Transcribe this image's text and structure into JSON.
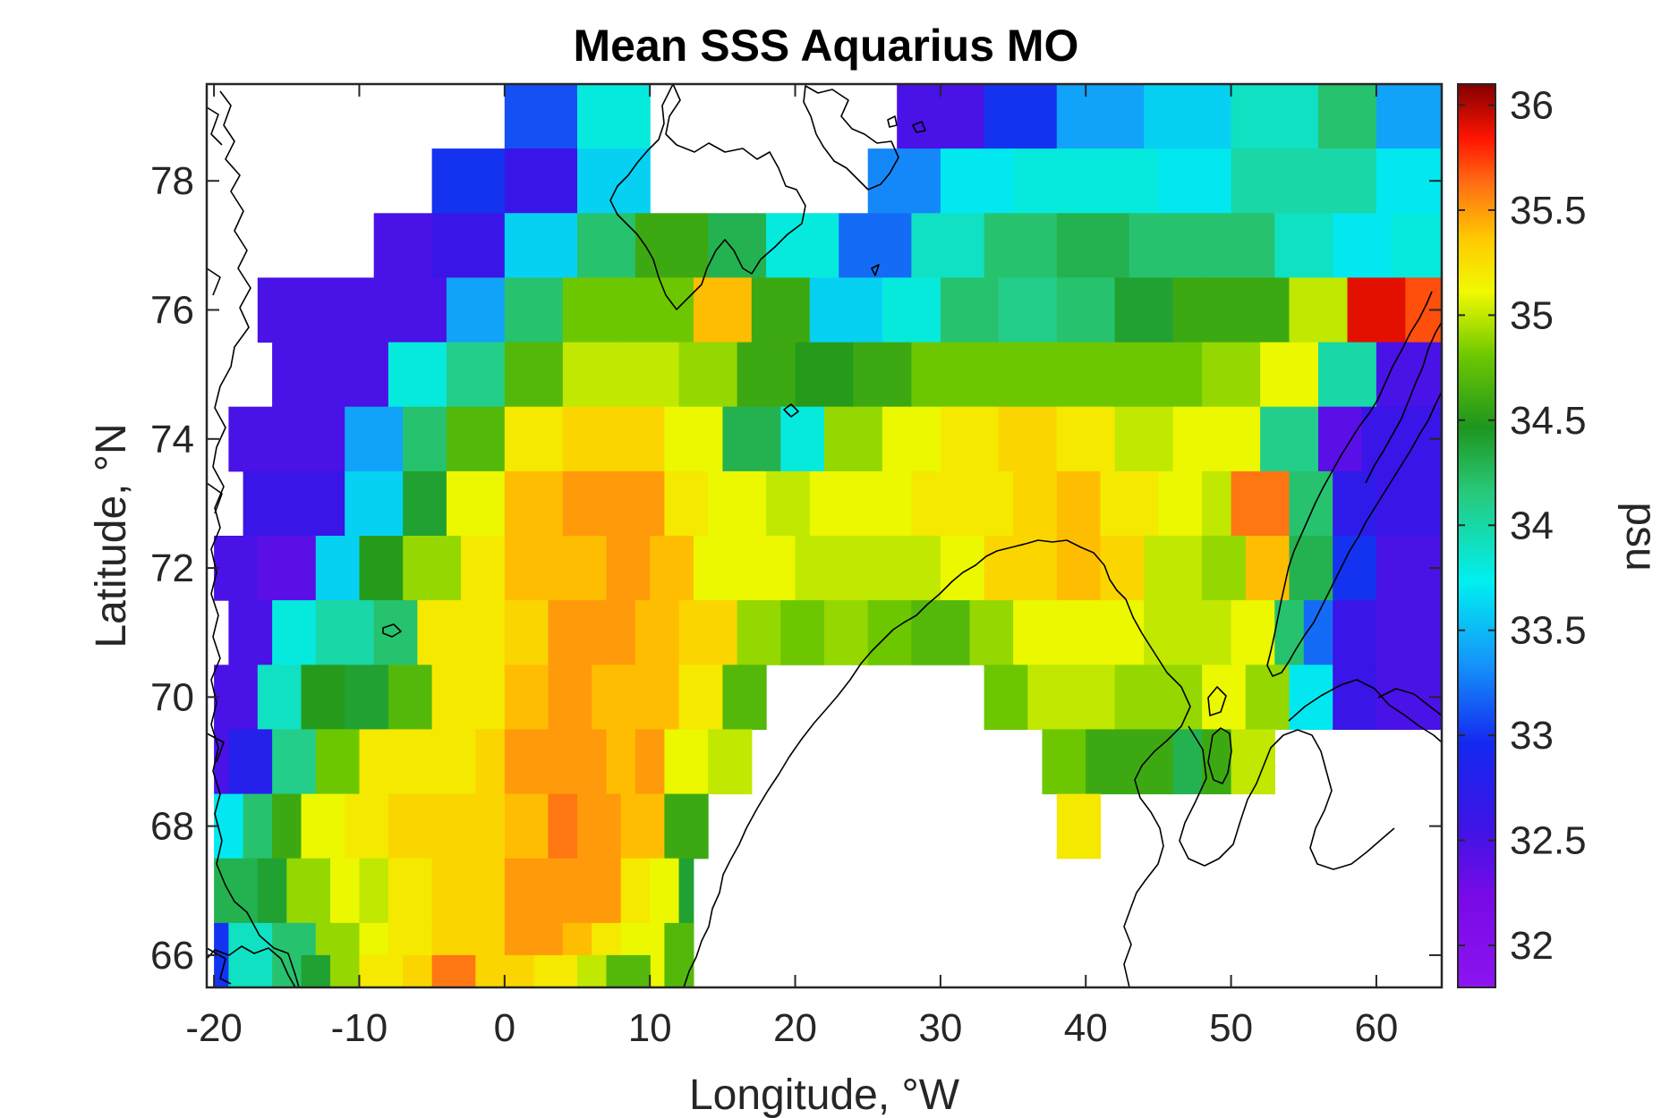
{
  "chart_data": {
    "type": "heatmap",
    "title": "Mean SSS Aquarius MO",
    "xlabel": "Longitude, °W",
    "ylabel": "Latitude, °N",
    "xlim": [
      -20.5,
      64.5
    ],
    "ylim": [
      65.5,
      79.5
    ],
    "xticks": [
      -20,
      -10,
      0,
      10,
      20,
      30,
      40,
      50,
      60
    ],
    "xtick_labels": [
      "-20",
      "-10",
      "0",
      "10",
      "20",
      "30",
      "40",
      "50",
      "60"
    ],
    "yticks": [
      66,
      68,
      70,
      72,
      74,
      76,
      78
    ],
    "ytick_labels": [
      "66",
      "68",
      "70",
      "72",
      "74",
      "76",
      "78"
    ],
    "grid": false,
    "colormap": "jet-like (purple-blue-cyan-green-yellow-red-darkred)",
    "colorbar": {
      "label": "psu",
      "range": [
        31.8,
        36.1
      ],
      "ticks": [
        32,
        32.5,
        33,
        33.5,
        34,
        34.5,
        35,
        35.5,
        36
      ],
      "tick_labels": [
        "32",
        "32.5",
        "33",
        "33.5",
        "34",
        "34.5",
        "35",
        "35.5",
        "36"
      ]
    },
    "latitude_rows": [
      79,
      78,
      77,
      76,
      75,
      74,
      73,
      72,
      71,
      70,
      69,
      68,
      67,
      66
    ],
    "cells": [
      {
        "lat": 79,
        "lon": [
          [
            0,
            5,
            33.1
          ],
          [
            5,
            10,
            33.8
          ],
          [
            27,
            33,
            32.5
          ],
          [
            33,
            38,
            33.0
          ],
          [
            38,
            44,
            33.4
          ],
          [
            44,
            50,
            33.6
          ],
          [
            50,
            56,
            33.9
          ],
          [
            56,
            60,
            34.2
          ],
          [
            60,
            64.5,
            33.4
          ]
        ]
      },
      {
        "lat": 78,
        "lon": [
          [
            -5,
            0,
            33.0
          ],
          [
            0,
            5,
            32.6
          ],
          [
            5,
            10,
            33.6
          ],
          [
            25,
            30,
            33.3
          ],
          [
            30,
            35,
            33.7
          ],
          [
            35,
            40,
            33.8
          ],
          [
            40,
            45,
            33.8
          ],
          [
            45,
            50,
            33.7
          ],
          [
            50,
            55,
            34.0
          ],
          [
            55,
            60,
            34.0
          ],
          [
            60,
            64.5,
            33.7
          ]
        ]
      },
      {
        "lat": 77,
        "lon": [
          [
            -9,
            -5,
            32.5
          ],
          [
            -5,
            0,
            32.6
          ],
          [
            0,
            5,
            33.6
          ],
          [
            5,
            9,
            34.2
          ],
          [
            9,
            14,
            34.6
          ],
          [
            14,
            18,
            34.3
          ],
          [
            18,
            23,
            33.8
          ],
          [
            23,
            28,
            33.2
          ],
          [
            28,
            33,
            33.9
          ],
          [
            33,
            38,
            34.2
          ],
          [
            38,
            43,
            34.3
          ],
          [
            43,
            48,
            34.2
          ],
          [
            48,
            53,
            34.2
          ],
          [
            53,
            57,
            33.9
          ],
          [
            57,
            61,
            33.7
          ],
          [
            61,
            64.5,
            33.8
          ]
        ]
      },
      {
        "lat": 76,
        "lon": [
          [
            -17,
            -4,
            32.5
          ],
          [
            -4,
            0,
            33.4
          ],
          [
            0,
            4,
            34.2
          ],
          [
            4,
            13,
            34.8
          ],
          [
            13,
            17,
            35.4
          ],
          [
            17,
            21,
            34.6
          ],
          [
            21,
            26,
            33.6
          ],
          [
            26,
            30,
            33.8
          ],
          [
            30,
            34,
            34.2
          ],
          [
            34,
            38,
            34.1
          ],
          [
            38,
            42,
            34.2
          ],
          [
            42,
            46,
            34.4
          ],
          [
            46,
            54,
            34.6
          ],
          [
            54,
            58,
            35.0
          ],
          [
            58,
            62,
            35.9
          ],
          [
            62,
            64.5,
            35.7
          ]
        ]
      },
      {
        "lat": 75,
        "lon": [
          [
            -16,
            -8,
            32.5
          ],
          [
            -8,
            -4,
            33.8
          ],
          [
            -4,
            0,
            34.1
          ],
          [
            0,
            4,
            34.7
          ],
          [
            4,
            8,
            35.0
          ],
          [
            8,
            12,
            35.0
          ],
          [
            12,
            16,
            34.9
          ],
          [
            16,
            20,
            34.6
          ],
          [
            20,
            24,
            34.5
          ],
          [
            24,
            28,
            34.6
          ],
          [
            28,
            48,
            34.8
          ],
          [
            48,
            52,
            34.9
          ],
          [
            52,
            56,
            35.1
          ],
          [
            56,
            60,
            34.0
          ],
          [
            60,
            64.5,
            32.5
          ]
        ]
      },
      {
        "lat": 74,
        "lon": [
          [
            -19,
            -11,
            32.5
          ],
          [
            -11,
            -7,
            33.4
          ],
          [
            -7,
            -4,
            34.2
          ],
          [
            -4,
            0,
            34.7
          ],
          [
            0,
            4,
            35.2
          ],
          [
            4,
            11,
            35.3
          ],
          [
            11,
            15,
            35.1
          ],
          [
            15,
            19,
            34.3
          ],
          [
            19,
            22,
            33.8
          ],
          [
            22,
            26,
            34.9
          ],
          [
            26,
            30,
            35.1
          ],
          [
            30,
            34,
            35.2
          ],
          [
            34,
            38,
            35.3
          ],
          [
            38,
            42,
            35.2
          ],
          [
            42,
            46,
            35.0
          ],
          [
            46,
            52,
            35.1
          ],
          [
            52,
            56,
            34.1
          ],
          [
            56,
            59,
            32.4
          ],
          [
            59,
            64.5,
            32.6
          ]
        ]
      },
      {
        "lat": 73,
        "lon": [
          [
            -18,
            -11,
            32.6
          ],
          [
            -11,
            -7,
            33.6
          ],
          [
            -7,
            -4,
            34.4
          ],
          [
            -4,
            0,
            35.1
          ],
          [
            0,
            4,
            35.4
          ],
          [
            4,
            11,
            35.5
          ],
          [
            11,
            14,
            35.2
          ],
          [
            14,
            18,
            35.1
          ],
          [
            18,
            21,
            35.0
          ],
          [
            21,
            28,
            35.1
          ],
          [
            28,
            35,
            35.2
          ],
          [
            35,
            38,
            35.3
          ],
          [
            38,
            41,
            35.4
          ],
          [
            41,
            45,
            35.2
          ],
          [
            45,
            48,
            35.1
          ],
          [
            48,
            50,
            35.0
          ],
          [
            50,
            54,
            35.6
          ],
          [
            54,
            57,
            34.2
          ],
          [
            57,
            60,
            32.7
          ],
          [
            60,
            64.5,
            32.6
          ]
        ]
      },
      {
        "lat": 72,
        "lon": [
          [
            -20,
            -17,
            32.5
          ],
          [
            -17,
            -13,
            32.4
          ],
          [
            -13,
            -10,
            33.6
          ],
          [
            -10,
            -7,
            34.5
          ],
          [
            -7,
            -3,
            34.9
          ],
          [
            -3,
            0,
            35.2
          ],
          [
            0,
            7,
            35.4
          ],
          [
            7,
            10,
            35.5
          ],
          [
            10,
            13,
            35.4
          ],
          [
            13,
            20,
            35.1
          ],
          [
            20,
            30,
            35.0
          ],
          [
            30,
            33,
            35.1
          ],
          [
            33,
            38,
            35.3
          ],
          [
            38,
            41,
            35.4
          ],
          [
            41,
            44,
            35.3
          ],
          [
            44,
            48,
            35.0
          ],
          [
            48,
            51,
            34.9
          ],
          [
            51,
            54,
            35.4
          ],
          [
            54,
            57,
            34.3
          ],
          [
            57,
            60,
            33.0
          ],
          [
            60,
            64.5,
            32.5
          ]
        ]
      },
      {
        "lat": 71,
        "lon": [
          [
            -19,
            -16,
            32.5
          ],
          [
            -16,
            -13,
            33.8
          ],
          [
            -13,
            -9,
            34.0
          ],
          [
            -9,
            -6,
            34.2
          ],
          [
            -6,
            0,
            35.2
          ],
          [
            0,
            3,
            35.3
          ],
          [
            3,
            9,
            35.5
          ],
          [
            9,
            12,
            35.4
          ],
          [
            12,
            16,
            35.3
          ],
          [
            16,
            19,
            34.9
          ],
          [
            19,
            22,
            34.8
          ],
          [
            22,
            25,
            34.9
          ],
          [
            25,
            28,
            34.8
          ],
          [
            28,
            32,
            34.7
          ],
          [
            32,
            35,
            34.9
          ],
          [
            35,
            44,
            35.1
          ],
          [
            44,
            50,
            35.0
          ],
          [
            50,
            53,
            35.1
          ],
          [
            53,
            55,
            34.2
          ],
          [
            55,
            57,
            33.2
          ],
          [
            57,
            60,
            32.6
          ],
          [
            60,
            64.5,
            32.5
          ]
        ]
      },
      {
        "lat": 70,
        "lon": [
          [
            -20,
            -17,
            32.5
          ],
          [
            -17,
            -14,
            33.9
          ],
          [
            -14,
            -11,
            34.5
          ],
          [
            -11,
            -8,
            34.4
          ],
          [
            -8,
            -5,
            34.7
          ],
          [
            -5,
            0,
            35.2
          ],
          [
            0,
            3,
            35.4
          ],
          [
            3,
            6,
            35.5
          ],
          [
            6,
            12,
            35.4
          ],
          [
            12,
            15,
            35.2
          ],
          [
            15,
            18,
            34.7
          ],
          [
            33,
            36,
            34.8
          ],
          [
            36,
            42,
            35.0
          ],
          [
            42,
            48,
            34.9
          ],
          [
            48,
            51,
            35.1
          ],
          [
            51,
            54,
            34.9
          ],
          [
            54,
            57,
            33.7
          ],
          [
            57,
            60,
            32.6
          ],
          [
            60,
            62,
            32.5
          ],
          [
            62,
            64.5,
            32.5
          ]
        ]
      },
      {
        "lat": 69,
        "lon": [
          [
            -20,
            -19,
            32.5
          ],
          [
            -19,
            -16,
            32.8
          ],
          [
            -16,
            -13,
            34.1
          ],
          [
            -13,
            -10,
            34.8
          ],
          [
            -10,
            -2,
            35.2
          ],
          [
            -2,
            0,
            35.3
          ],
          [
            0,
            7,
            35.5
          ],
          [
            7,
            9,
            35.4
          ],
          [
            9,
            11,
            35.5
          ],
          [
            11,
            14,
            35.1
          ],
          [
            14,
            17,
            35.0
          ],
          [
            37,
            40,
            34.8
          ],
          [
            40,
            43,
            34.6
          ],
          [
            43,
            46,
            34.6
          ],
          [
            46,
            48,
            34.3
          ],
          [
            48,
            50,
            34.6
          ],
          [
            50,
            53,
            35.0
          ]
        ]
      },
      {
        "lat": 68,
        "lon": [
          [
            -20,
            -18,
            33.7
          ],
          [
            -18,
            -16,
            34.2
          ],
          [
            -16,
            -14,
            34.6
          ],
          [
            -14,
            -11,
            35.1
          ],
          [
            -11,
            -8,
            35.2
          ],
          [
            -8,
            -3,
            35.3
          ],
          [
            -3,
            0,
            35.3
          ],
          [
            0,
            3,
            35.4
          ],
          [
            3,
            5,
            35.6
          ],
          [
            5,
            8,
            35.5
          ],
          [
            8,
            11,
            35.4
          ],
          [
            11,
            14,
            34.6
          ],
          [
            38,
            41,
            35.2
          ]
        ]
      },
      {
        "lat": 67,
        "lon": [
          [
            -20,
            -17,
            34.3
          ],
          [
            -17,
            -15,
            34.4
          ],
          [
            -15,
            -12,
            34.9
          ],
          [
            -12,
            -10,
            35.1
          ],
          [
            -10,
            -8,
            35.0
          ],
          [
            -8,
            -5,
            35.2
          ],
          [
            -5,
            0,
            35.3
          ],
          [
            0,
            5,
            35.5
          ],
          [
            5,
            8,
            35.5
          ],
          [
            8,
            10,
            35.2
          ],
          [
            10,
            12,
            35.1
          ],
          [
            12,
            13,
            34.4
          ]
        ]
      },
      {
        "lat": 66,
        "lon": [
          [
            -20,
            -19,
            33.0
          ],
          [
            -19,
            -16,
            33.9
          ],
          [
            -16,
            -13,
            34.2
          ],
          [
            -13,
            -10,
            34.9
          ],
          [
            -10,
            -8,
            35.1
          ],
          [
            -8,
            -5,
            35.2
          ],
          [
            -5,
            0,
            35.3
          ],
          [
            0,
            4,
            35.5
          ],
          [
            4,
            6,
            35.4
          ],
          [
            6,
            8,
            35.2
          ],
          [
            8,
            11,
            35.1
          ],
          [
            11,
            13,
            34.7
          ]
        ]
      },
      {
        "lat": 65.5,
        "lon": [
          [
            -14,
            -12,
            34.4
          ],
          [
            -12,
            -10,
            34.9
          ],
          [
            -10,
            -7,
            35.2
          ],
          [
            -7,
            -5,
            35.3
          ],
          [
            -5,
            -2,
            35.6
          ],
          [
            -2,
            0,
            35.3
          ],
          [
            0,
            2,
            35.3
          ],
          [
            2,
            5,
            35.2
          ],
          [
            5,
            7,
            35.0
          ],
          [
            7,
            10,
            34.7
          ]
        ]
      }
    ]
  }
}
